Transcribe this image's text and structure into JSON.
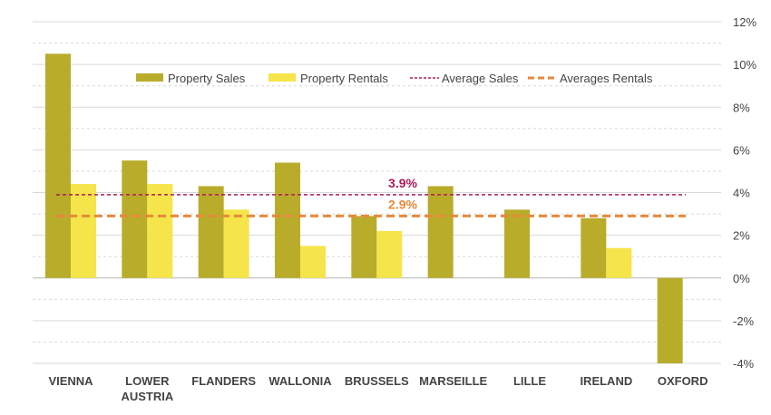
{
  "chart_data": {
    "type": "bar",
    "categories": [
      [
        "VIENNA"
      ],
      [
        "LOWER",
        "AUSTRIA"
      ],
      [
        "FLANDERS"
      ],
      [
        "WALLONIA"
      ],
      [
        "BRUSSELS"
      ],
      [
        "MARSEILLE"
      ],
      [
        "LILLE"
      ],
      [
        "IRELAND"
      ],
      [
        "OXFORD"
      ]
    ],
    "series": [
      {
        "name": "Property Sales",
        "color": "#b9ac2b",
        "values": [
          10.5,
          5.5,
          4.3,
          5.4,
          2.9,
          4.3,
          3.2,
          2.8,
          -4.0
        ]
      },
      {
        "name": "Property Rentals",
        "color": "#f5e54a",
        "values": [
          4.4,
          4.4,
          3.2,
          1.5,
          2.2,
          null,
          null,
          1.4,
          null
        ]
      }
    ],
    "reference_lines": [
      {
        "name": "Average Sales",
        "value": 3.9,
        "label": "3.9%",
        "color": "#b0195a",
        "style": "dashed-thin"
      },
      {
        "name": "Averages Rentals",
        "value": 2.9,
        "label": "2.9%",
        "color": "#e8893a",
        "style": "dashed-thick"
      }
    ],
    "ylim": [
      -4,
      12
    ],
    "yticks": [
      "-4%",
      "-2%",
      "0%",
      "2%",
      "4%",
      "6%",
      "8%",
      "10%",
      "12%"
    ],
    "y_axis_side": "right",
    "grid": true,
    "legend_position": "top",
    "title": "",
    "xlabel": "",
    "ylabel": ""
  }
}
